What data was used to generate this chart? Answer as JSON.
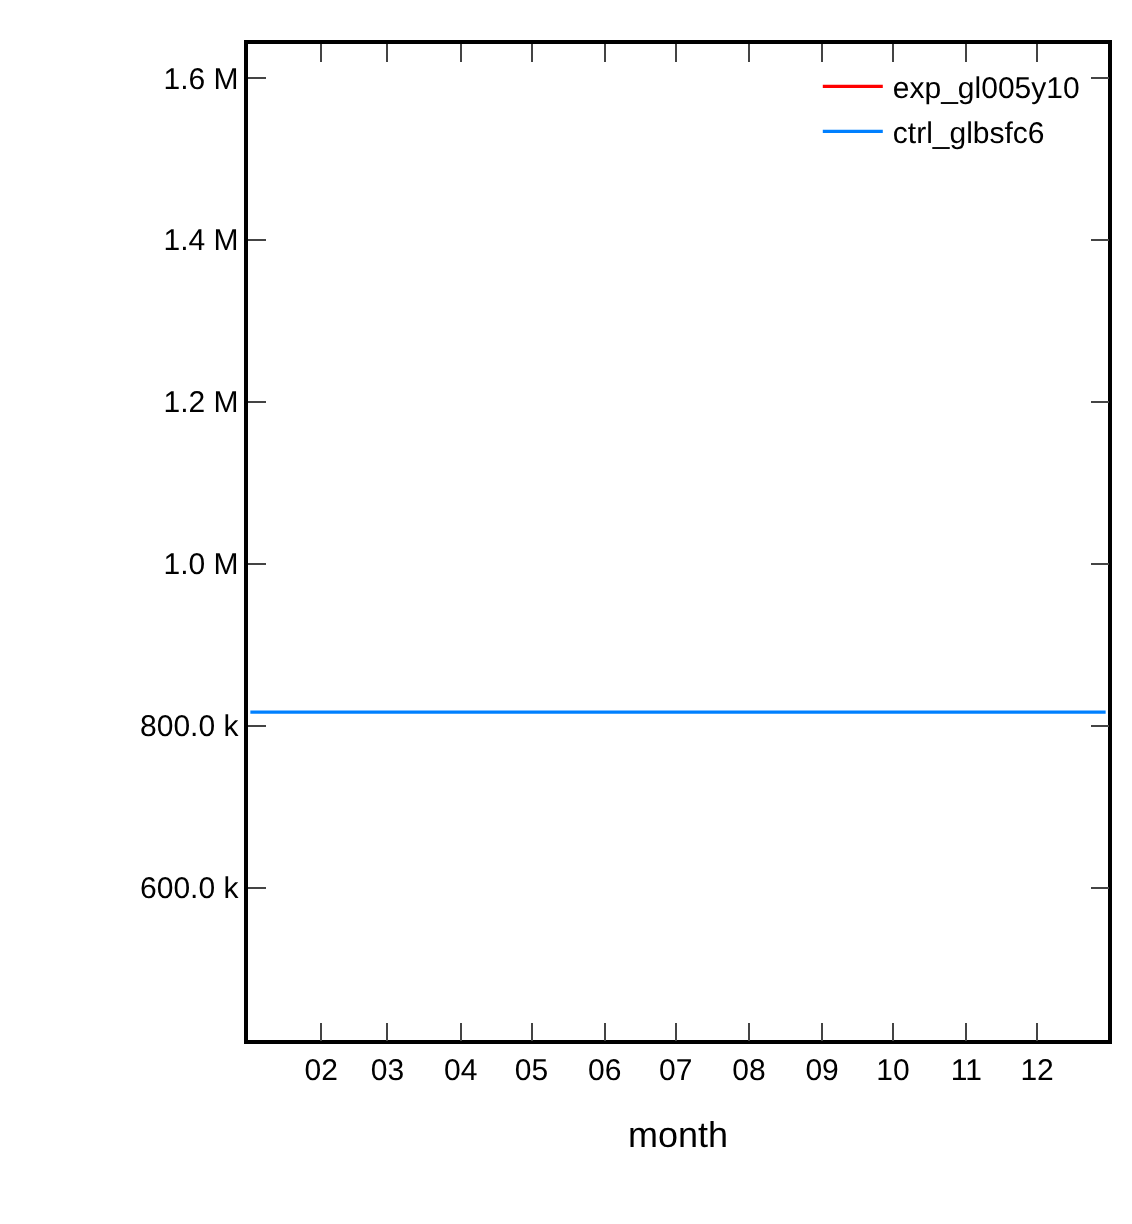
{
  "chart_data": {
    "type": "line",
    "xlabel": "month",
    "x": [
      "--01-02",
      "--12-30"
    ],
    "series": [
      {
        "name": "exp_gl005y10",
        "color": "#ff0000",
        "values": [
          null,
          null
        ]
      },
      {
        "name": "ctrl_glbsfc6",
        "color": "#0080ff",
        "values": [
          817000,
          817000
        ]
      }
    ],
    "xlim": [
      "--01-01",
      "--12-31"
    ],
    "xticks": [
      {
        "value": "--02-01",
        "label": "02"
      },
      {
        "value": "--03-01",
        "label": "03"
      },
      {
        "value": "--04-01",
        "label": "04"
      },
      {
        "value": "--05-01",
        "label": "05"
      },
      {
        "value": "--06-01",
        "label": "06"
      },
      {
        "value": "--07-01",
        "label": "07"
      },
      {
        "value": "--08-01",
        "label": "08"
      },
      {
        "value": "--09-01",
        "label": "09"
      },
      {
        "value": "--10-01",
        "label": "10"
      },
      {
        "value": "--11-01",
        "label": "11"
      },
      {
        "value": "--12-01",
        "label": "12"
      }
    ],
    "ylim": [
      412000,
      1642000
    ],
    "yticks": [
      {
        "value": 600000,
        "label": "600.0 k"
      },
      {
        "value": 800000,
        "label": "800.0 k"
      },
      {
        "value": 1000000,
        "label": "1.0 M"
      },
      {
        "value": 1200000,
        "label": "1.2 M"
      },
      {
        "value": 1400000,
        "label": "1.4 M"
      },
      {
        "value": 1600000,
        "label": "1.6 M"
      }
    ],
    "legend": "top right",
    "marker": "none",
    "line_style": "solid"
  }
}
